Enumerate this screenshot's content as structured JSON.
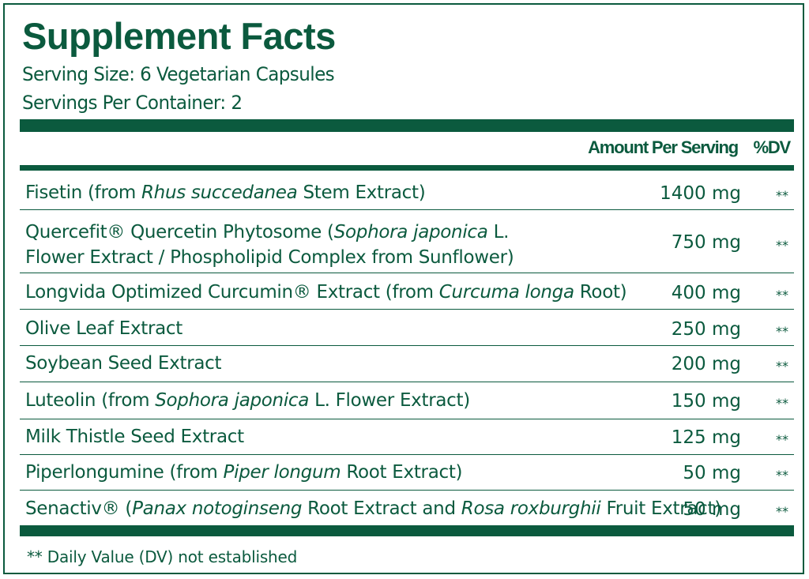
{
  "title": "Supplement Facts",
  "serving_size": "Serving Size: 6 Vegetarian Capsules",
  "servings_per_container": "Servings Per Container: 2",
  "header": {
    "amount": "Amount Per Serving",
    "dv": "%DV"
  },
  "rows": [
    {
      "name": [
        {
          "t": "Fisetin (from "
        },
        {
          "t": "Rhus succedanea",
          "i": true
        },
        {
          "t": " Stem Extract)"
        }
      ],
      "amount": "1400 mg",
      "dv": "**"
    },
    {
      "name": [
        {
          "t": "Quercefit® Quercetin Phytosome ("
        },
        {
          "t": "Sophora japonica",
          "i": true
        },
        {
          "t": " L."
        },
        {
          "br": true
        },
        {
          "t": "Flower Extract / Phospholipid Complex from Sunflower)"
        }
      ],
      "amount": "750 mg",
      "dv": "**"
    },
    {
      "name": [
        {
          "t": "Longvida Optimized Curcumin® Extract (from "
        },
        {
          "t": "Curcuma longa",
          "i": true
        },
        {
          "t": " Root)"
        }
      ],
      "amount": "400 mg",
      "dv": "**"
    },
    {
      "name": [
        {
          "t": "Olive Leaf Extract"
        }
      ],
      "amount": "250 mg",
      "dv": "**"
    },
    {
      "name": [
        {
          "t": "Soybean Seed Extract"
        }
      ],
      "amount": "200 mg",
      "dv": "**"
    },
    {
      "name": [
        {
          "t": "Luteolin (from "
        },
        {
          "t": "Sophora japonica",
          "i": true
        },
        {
          "t": " L. Flower Extract)"
        }
      ],
      "amount": "150 mg",
      "dv": "**"
    },
    {
      "name": [
        {
          "t": "Milk Thistle Seed Extract"
        }
      ],
      "amount": "125 mg",
      "dv": "**"
    },
    {
      "name": [
        {
          "t": "Piperlongumine (from "
        },
        {
          "t": "Piper longum",
          "i": true
        },
        {
          "t": " Root Extract)"
        }
      ],
      "amount": "50 mg",
      "dv": "**"
    },
    {
      "name": [
        {
          "t": "Senactiv® ("
        },
        {
          "t": "Panax notoginseng",
          "i": true
        },
        {
          "t": " Root Extract and "
        },
        {
          "t": "Rosa roxburghii",
          "i": true
        },
        {
          "t": " Fruit Extract)"
        }
      ],
      "amount": "50 mg",
      "dv": "**"
    }
  ],
  "footnote": "** Daily Value (DV) not established",
  "colors": {
    "primary": "#0b5a3e",
    "background": "#ffffff"
  }
}
